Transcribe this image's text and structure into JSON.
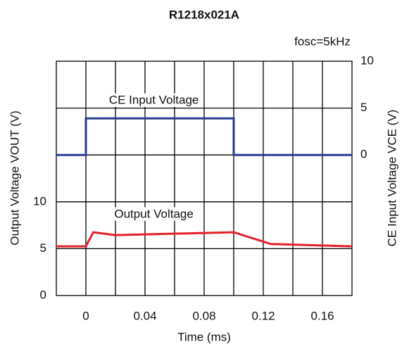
{
  "chart_data": {
    "type": "line",
    "title": "R1218x021A",
    "subtitle": "fosc=5kHz",
    "x_label": "Time (ms)",
    "y_label": "Output Voltage VOUT (V)",
    "y2_label": "CE Input Voltage VCE (V)",
    "xlim": [
      -0.02,
      0.18
    ],
    "xticks": [
      0,
      0.04,
      0.08,
      0.12,
      0.16
    ],
    "ylim": [
      0,
      25
    ],
    "yticks": [
      0,
      5,
      10
    ],
    "y2lim": [
      -15,
      10
    ],
    "y2ticks": [
      0,
      5,
      10
    ],
    "grid": true,
    "series": [
      {
        "name": "CE Input Voltage",
        "color": "#283c94",
        "axis": "y2",
        "x": [
          -0.02,
          0,
          0,
          0.1,
          0.1,
          0.18
        ],
        "values": [
          0,
          0,
          3.9,
          3.9,
          0,
          0
        ]
      },
      {
        "name": "Output Voltage",
        "color": "#e3202a",
        "axis": "y",
        "x": [
          -0.02,
          0,
          0.005,
          0.02,
          0.1,
          0.125,
          0.18
        ],
        "values": [
          5.25,
          5.25,
          6.75,
          6.45,
          6.75,
          5.5,
          5.25
        ]
      }
    ]
  }
}
